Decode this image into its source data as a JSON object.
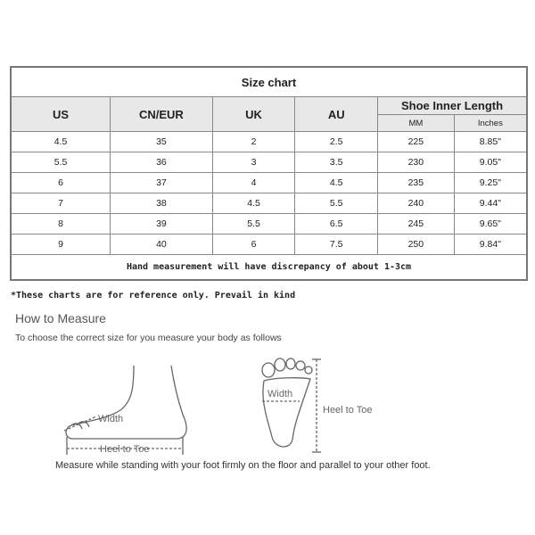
{
  "table": {
    "title": "Size chart",
    "headers": [
      "US",
      "CN/EUR",
      "UK",
      "AU"
    ],
    "group_header": "Shoe Inner Length",
    "sub_headers": [
      "MM",
      "Inches"
    ],
    "rows": [
      [
        "4.5",
        "35",
        "2",
        "2.5",
        "225",
        "8.85\""
      ],
      [
        "5.5",
        "36",
        "3",
        "3.5",
        "230",
        "9.05\""
      ],
      [
        "6",
        "37",
        "4",
        "4.5",
        "235",
        "9.25\""
      ],
      [
        "7",
        "38",
        "4.5",
        "5.5",
        "240",
        "9.44\""
      ],
      [
        "8",
        "39",
        "5.5",
        "6.5",
        "245",
        "9.65\""
      ],
      [
        "9",
        "40",
        "6",
        "7.5",
        "250",
        "9.84\""
      ]
    ],
    "note": "Hand measurement will have discrepancy of about 1-3cm"
  },
  "disclaimer": "*These charts are for reference only. Prevail in kind",
  "how_to": {
    "title": "How to Measure",
    "subtitle": "To choose the correct size for you measure your body as follows",
    "side_labels": {
      "width": "Width",
      "length": "Heel to Toe"
    },
    "top_labels": {
      "width": "Width",
      "length": "Heel to Toe"
    },
    "instruction": "Measure while standing with your foot firmly on the floor and parallel to your other foot."
  }
}
